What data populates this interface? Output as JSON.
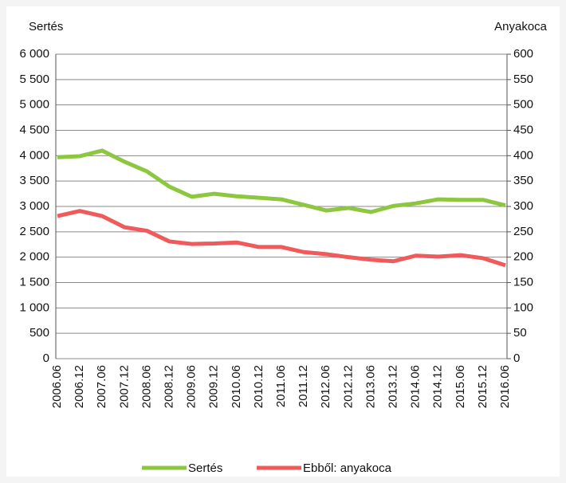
{
  "chart_data": {
    "type": "line",
    "y_label": "Sertés",
    "y2_label": "Anyakoca",
    "categories": [
      "2006.06",
      "2006.12",
      "2007.06",
      "2007.12",
      "2008.06",
      "2008.12",
      "2009.06",
      "2009.12",
      "2010.06",
      "2010.12",
      "2011.06",
      "2011.12",
      "2012.06",
      "2012.12",
      "2013.06",
      "2013.12",
      "2014.06",
      "2014.12",
      "2015.06",
      "2015.12",
      "2016.06"
    ],
    "series": [
      {
        "name": "Sertés",
        "color": "#8dc63f",
        "values": [
          3970,
          3990,
          4100,
          3880,
          3690,
          3390,
          3190,
          3250,
          3200,
          3170,
          3140,
          3030,
          2920,
          2970,
          2890,
          3010,
          3060,
          3140,
          3130,
          3130,
          3020
        ]
      },
      {
        "name": "Ebből: anyakoca",
        "color": "#f05a5a",
        "axis": "y2",
        "values": [
          281,
          291,
          281,
          259,
          252,
          231,
          226,
          227,
          229,
          220,
          220,
          210,
          206,
          200,
          195,
          192,
          203,
          201,
          204,
          198,
          184
        ]
      }
    ],
    "ylim": [
      0,
      6000
    ],
    "yticks": [
      0,
      {
        "value": 500,
        "label": "500"
      },
      {
        "value": 1000,
        "label": "1 000"
      },
      {
        "value": 1500,
        "label": "1 500"
      },
      {
        "value": 2000,
        "label": "2 000"
      },
      {
        "value": 2500,
        "label": "2 500"
      },
      {
        "value": 3000,
        "label": "3 000"
      },
      {
        "value": 3500,
        "label": "3 500"
      },
      {
        "value": 4000,
        "label": "4 000"
      },
      {
        "value": 4500,
        "label": "4 500"
      },
      {
        "value": 5000,
        "label": "5 000"
      },
      {
        "value": 5500,
        "label": "5 500"
      },
      {
        "value": 6000,
        "label": "6 000"
      }
    ],
    "y2lim": [
      0,
      600
    ],
    "y2ticks": [
      0,
      50,
      100,
      150,
      200,
      250,
      300,
      350,
      400,
      450,
      500,
      550,
      600
    ],
    "grid": true,
    "legend": "bottom"
  }
}
